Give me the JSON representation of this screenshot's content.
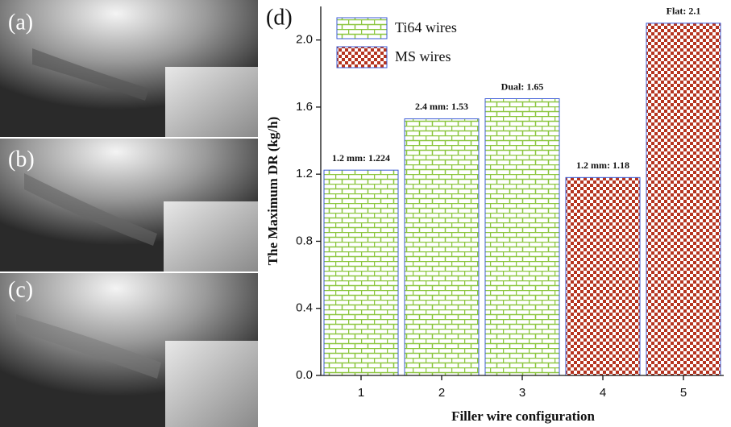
{
  "photo_panels": {
    "labels": [
      "(a)",
      "(b)",
      "(c)"
    ]
  },
  "chart_data": {
    "type": "bar",
    "panel_label": "(d)",
    "x_label": "Filler wire configuration",
    "y_label": "The Maximum DR (kg/h)",
    "categories": [
      "1",
      "2",
      "3",
      "4",
      "5"
    ],
    "series": [
      {
        "name": "Ti64 wires",
        "color": "#8cc63f",
        "pattern": "brick",
        "values": [
          1.224,
          1.53,
          1.65,
          null,
          null
        ],
        "value_labels": [
          "1.2 mm: 1.224",
          "2.4 mm: 1.53",
          "Dual: 1.65",
          null,
          null
        ]
      },
      {
        "name": "MS wires",
        "color": "#b5341f",
        "pattern": "checker",
        "values": [
          null,
          null,
          null,
          1.18,
          2.1
        ],
        "value_labels": [
          null,
          null,
          null,
          "1.2 mm: 1.18",
          "Flat: 2.1"
        ]
      }
    ],
    "ylim": [
      0,
      2.2
    ],
    "yticks": [
      {
        "value": 0,
        "label": "0.0"
      },
      0.4,
      0.8,
      1.2,
      1.6,
      {
        "value": 2,
        "label": "2.0"
      }
    ],
    "legend": "upper left"
  }
}
